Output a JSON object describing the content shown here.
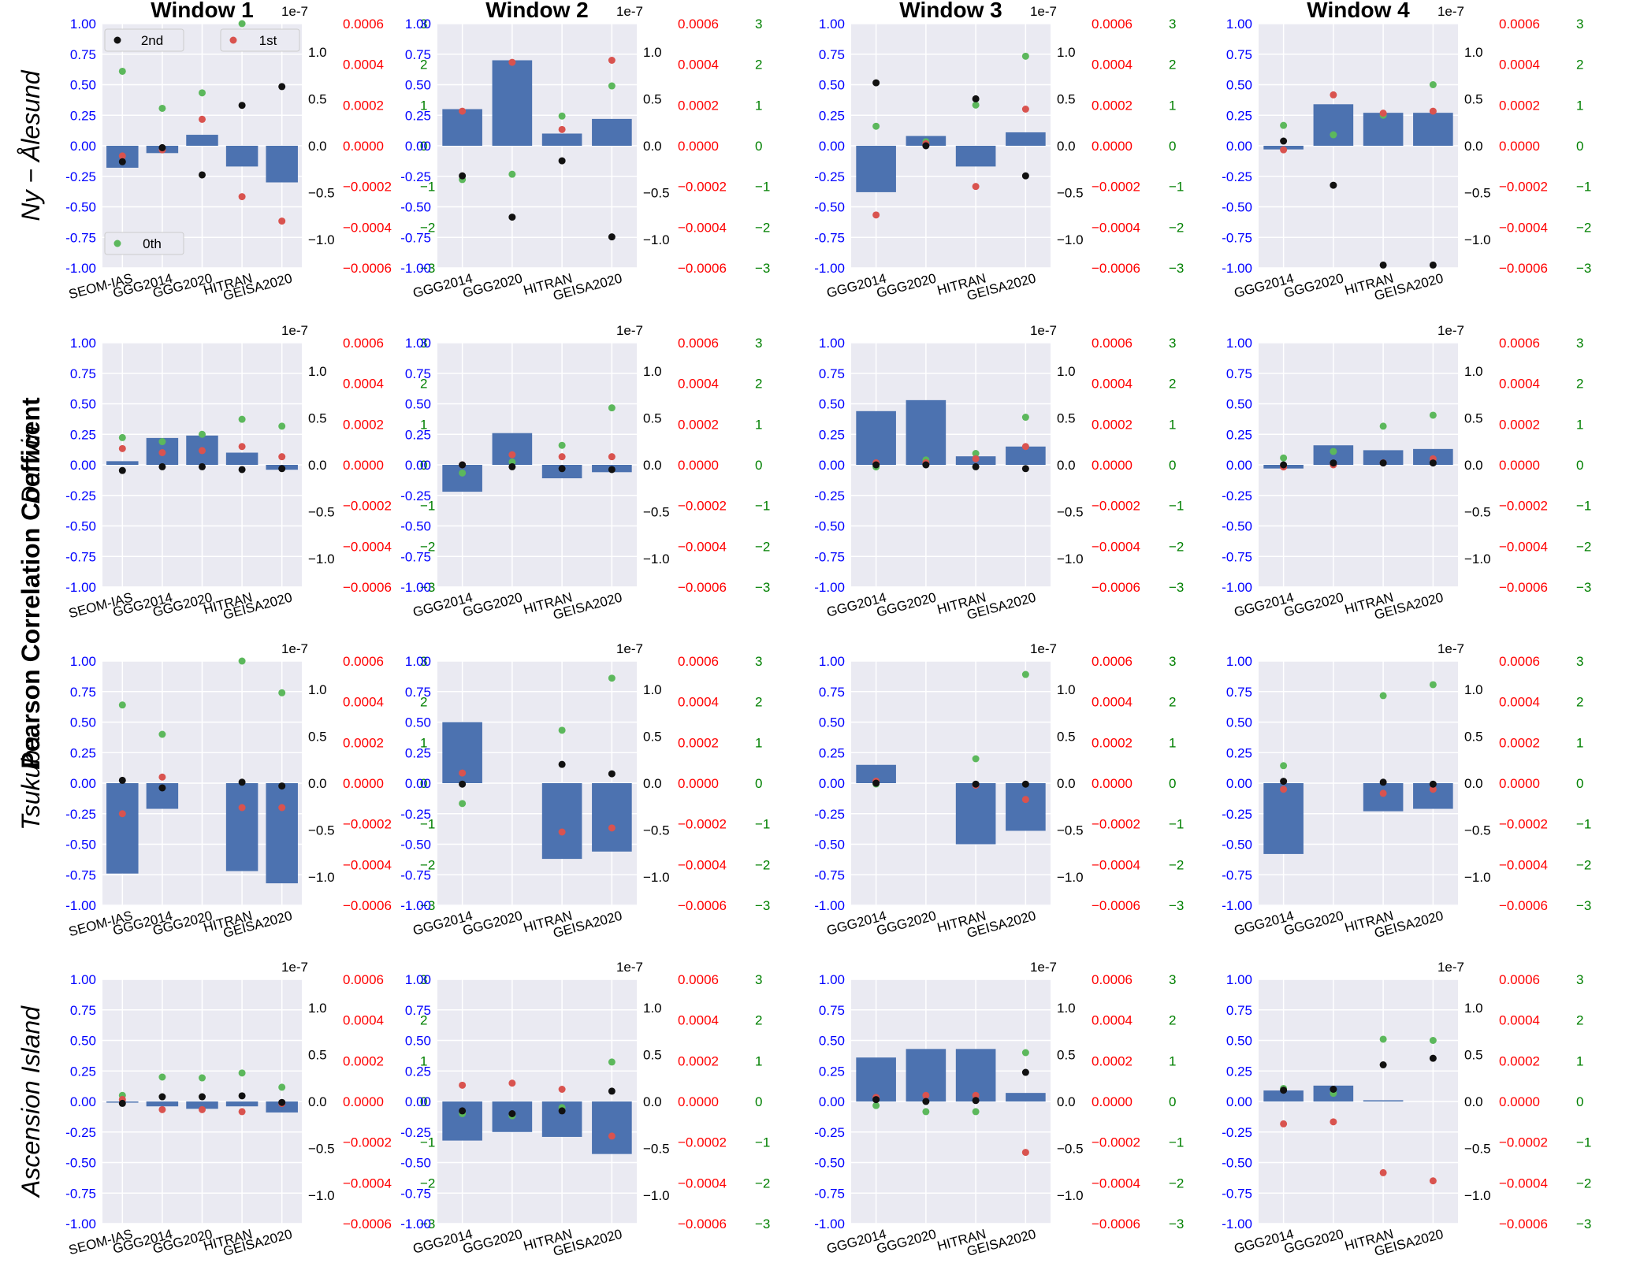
{
  "figure": {
    "ylabel": "Pearson Correlation Coefficent",
    "windows": [
      "Window 1",
      "Window 2",
      "Window 3",
      "Window 4"
    ],
    "sites": [
      "Ny − Ålesund",
      "Darwin",
      "Tsukuba",
      "Ascension Island"
    ],
    "exponent_label": "1e-7",
    "colors": {
      "bar": "#4c72b0",
      "second": "#111111",
      "first": "#d9534f",
      "zeroth": "#5cb85c",
      "left_axis": "#0000ff",
      "red_axis": "#ff0000",
      "green_axis": "#008000",
      "panel_bg": "#eaeaf2"
    },
    "legend": {
      "second": "2nd",
      "first": "1st",
      "zeroth": "0th"
    },
    "axes": {
      "left_ticks": [
        "-1.00",
        "-0.75",
        "-0.50",
        "-0.25",
        "0.00",
        "0.25",
        "0.50",
        "0.75",
        "1.00"
      ],
      "black_ticks": [
        "−1.0",
        "−0.5",
        "0.0",
        "0.5",
        "1.0"
      ],
      "red_ticks": [
        "−0.0006",
        "−0.0004",
        "−0.0002",
        "0.0000",
        "0.0002",
        "0.0004",
        "0.0006"
      ],
      "green_ticks": [
        "−3",
        "−2",
        "−1",
        "0",
        "1",
        "2",
        "3"
      ],
      "left_ylim": [
        -1,
        1
      ],
      "black_ylim": [
        -1.3e-07,
        1.3e-07
      ],
      "red_ylim": [
        -0.0006,
        0.0006
      ],
      "green_ylim": [
        -3,
        3
      ]
    }
  },
  "chart_data": [
    {
      "type": "bar",
      "window": "Window 1",
      "site": "Ny − Ålesund",
      "categories": [
        "SEOM-IAS",
        "GGG2014",
        "GGG2020",
        "HITRAN",
        "GEISA2020"
      ],
      "bar_values": [
        -0.18,
        -0.06,
        0.09,
        -0.17,
        -0.3
      ],
      "second_order": [
        -1.7e-08,
        -2e-09,
        -3.1e-08,
        4.3e-08,
        6.3e-08
      ],
      "first_order": [
        -5e-05,
        -2e-05,
        0.00013,
        -0.00025,
        -0.00037
      ],
      "zeroth_order": [
        1.83,
        0.92,
        1.3,
        3.12,
        2.5
      ]
    },
    {
      "type": "bar",
      "window": "Window 2",
      "site": "Ny − Ålesund",
      "categories": [
        "GGG2014",
        "GGG2020",
        "HITRAN",
        "GEISA2020"
      ],
      "bar_values": [
        0.3,
        0.7,
        0.1,
        0.22
      ],
      "second_order": [
        -3.2e-08,
        -7.6e-08,
        -1.6e-08,
        -9.7e-08
      ],
      "first_order": [
        0.00017,
        0.00041,
        8e-05,
        0.00042
      ],
      "zeroth_order": [
        -0.83,
        -0.7,
        0.73,
        1.47
      ]
    },
    {
      "type": "bar",
      "window": "Window 3",
      "site": "Ny − Ålesund",
      "categories": [
        "GGG2014",
        "GGG2020",
        "HITRAN",
        "GEISA2020"
      ],
      "bar_values": [
        -0.38,
        0.08,
        -0.17,
        0.11
      ],
      "second_order": [
        6.7e-08,
        0,
        5e-08,
        -3.2e-08
      ],
      "first_order": [
        -0.00034,
        1e-05,
        -0.0002,
        0.00018
      ],
      "zeroth_order": [
        0.48,
        0.1,
        1,
        2.2
      ]
    },
    {
      "type": "bar",
      "window": "Window 4",
      "site": "Ny − Ålesund",
      "categories": [
        "GGG2014",
        "GGG2020",
        "HITRAN",
        "GEISA2020"
      ],
      "bar_values": [
        -0.03,
        0.34,
        0.27,
        0.27
      ],
      "second_order": [
        5e-09,
        -4.2e-08,
        -1.27e-07,
        -1.27e-07
      ],
      "first_order": [
        -2e-05,
        0.00025,
        0.00016,
        0.00017
      ],
      "zeroth_order": [
        0.5,
        0.27,
        0.75,
        1.5
      ]
    },
    {
      "type": "bar",
      "window": "Window 1",
      "site": "Darwin",
      "categories": [
        "SEOM-IAS",
        "GGG2014",
        "GGG2020",
        "HITRAN",
        "GEISA2020"
      ],
      "bar_values": [
        0.03,
        0.22,
        0.24,
        0.1,
        -0.04
      ],
      "second_order": [
        -6e-09,
        -2e-09,
        -2e-09,
        -5e-09,
        -4e-09
      ],
      "first_order": [
        8e-05,
        6e-05,
        7e-05,
        9e-05,
        4e-05
      ],
      "zeroth_order": [
        0.67,
        0.57,
        0.75,
        1.12,
        0.95
      ]
    },
    {
      "type": "bar",
      "window": "Window 2",
      "site": "Darwin",
      "categories": [
        "GGG2014",
        "GGG2020",
        "HITRAN",
        "GEISA2020"
      ],
      "bar_values": [
        -0.22,
        0.26,
        -0.11,
        -0.06
      ],
      "second_order": [
        0,
        -2e-09,
        -4e-09,
        -5e-09
      ],
      "first_order": [
        0,
        5e-05,
        4e-05,
        4e-05
      ],
      "zeroth_order": [
        -0.2,
        0.07,
        0.48,
        1.4
      ]
    },
    {
      "type": "bar",
      "window": "Window 3",
      "site": "Darwin",
      "categories": [
        "GGG2014",
        "GGG2020",
        "HITRAN",
        "GEISA2020"
      ],
      "bar_values": [
        0.44,
        0.53,
        0.07,
        0.15
      ],
      "second_order": [
        0,
        0,
        -2e-09,
        -4e-09
      ],
      "first_order": [
        1e-05,
        1e-05,
        3e-05,
        9e-05
      ],
      "zeroth_order": [
        -0.05,
        0.12,
        0.28,
        1.17
      ]
    },
    {
      "type": "bar",
      "window": "Window 4",
      "site": "Darwin",
      "categories": [
        "GGG2014",
        "GGG2020",
        "HITRAN",
        "GEISA2020"
      ],
      "bar_values": [
        -0.03,
        0.16,
        0.12,
        0.13
      ],
      "second_order": [
        0,
        2e-09,
        2e-09,
        2e-09
      ],
      "first_order": [
        -1e-05,
        0,
        1e-05,
        3e-05
      ],
      "zeroth_order": [
        0.17,
        0.33,
        0.95,
        1.22
      ]
    },
    {
      "type": "bar",
      "window": "Window 1",
      "site": "Tsukuba",
      "categories": [
        "SEOM-IAS",
        "GGG2014",
        "GGG2020",
        "HITRAN",
        "GEISA2020"
      ],
      "bar_values": [
        -0.74,
        -0.21,
        null,
        -0.72,
        -0.82
      ],
      "second_order": [
        3e-09,
        -5e-09,
        null,
        1e-09,
        -3e-09
      ],
      "first_order": [
        -0.00015,
        3e-05,
        null,
        -0.00012,
        -0.00012
      ],
      "zeroth_order": [
        1.92,
        1.2,
        null,
        3.08,
        2.22
      ]
    },
    {
      "type": "bar",
      "window": "Window 2",
      "site": "Tsukuba",
      "categories": [
        "GGG2014",
        "GGG2020",
        "HITRAN",
        "GEISA2020"
      ],
      "bar_values": [
        0.5,
        null,
        -0.62,
        -0.56
      ],
      "second_order": [
        -1e-09,
        null,
        2e-08,
        1e-08
      ],
      "first_order": [
        5e-05,
        null,
        -0.00024,
        -0.00022
      ],
      "zeroth_order": [
        -0.5,
        null,
        1.3,
        2.58
      ]
    },
    {
      "type": "bar",
      "window": "Window 3",
      "site": "Tsukuba",
      "categories": [
        "GGG2014",
        "GGG2020",
        "HITRAN",
        "GEISA2020"
      ],
      "bar_values": [
        0.15,
        null,
        -0.5,
        -0.39
      ],
      "second_order": [
        0,
        null,
        -1e-09,
        -1e-09
      ],
      "first_order": [
        1e-05,
        null,
        -1e-05,
        -8e-05
      ],
      "zeroth_order": [
        -0.02,
        null,
        0.6,
        2.67
      ]
    },
    {
      "type": "bar",
      "window": "Window 4",
      "site": "Tsukuba",
      "categories": [
        "GGG2014",
        "GGG2020",
        "HITRAN",
        "GEISA2020"
      ],
      "bar_values": [
        -0.58,
        null,
        -0.23,
        -0.21
      ],
      "second_order": [
        2e-09,
        null,
        1e-09,
        -1e-09
      ],
      "first_order": [
        -3e-05,
        null,
        -5e-05,
        -3e-05
      ],
      "zeroth_order": [
        0.43,
        null,
        2.15,
        2.42
      ]
    },
    {
      "type": "bar",
      "window": "Window 1",
      "site": "Ascension Island",
      "categories": [
        "SEOM-IAS",
        "GGG2014",
        "GGG2020",
        "HITRAN",
        "GEISA2020"
      ],
      "bar_values": [
        0,
        -0.04,
        -0.06,
        -0.04,
        -0.09
      ],
      "second_order": [
        -2e-09,
        5e-09,
        5e-09,
        6e-09,
        -1e-09
      ],
      "first_order": [
        1e-05,
        -4e-05,
        -4e-05,
        -5e-05,
        -1e-05
      ],
      "zeroth_order": [
        0.15,
        0.6,
        0.58,
        0.7,
        0.35
      ]
    },
    {
      "type": "bar",
      "window": "Window 2",
      "site": "Ascension Island",
      "categories": [
        "GGG2014",
        "GGG2020",
        "HITRAN",
        "GEISA2020"
      ],
      "bar_values": [
        -0.32,
        -0.25,
        -0.29,
        -0.43
      ],
      "second_order": [
        -1e-08,
        -1.3e-08,
        -1e-08,
        1.1e-08
      ],
      "first_order": [
        8e-05,
        9e-05,
        6e-05,
        -0.00017
      ],
      "zeroth_order": [
        -0.3,
        -0.35,
        -0.15,
        0.97
      ]
    },
    {
      "type": "bar",
      "window": "Window 3",
      "site": "Ascension Island",
      "categories": [
        "GGG2014",
        "GGG2020",
        "HITRAN",
        "GEISA2020"
      ],
      "bar_values": [
        0.36,
        0.43,
        0.43,
        0.07
      ],
      "second_order": [
        2e-09,
        0,
        1e-09,
        3.1e-08
      ],
      "first_order": [
        2e-05,
        3e-05,
        3e-05,
        -0.00025
      ],
      "zeroth_order": [
        -0.1,
        -0.25,
        -0.25,
        1.2
      ]
    },
    {
      "type": "bar",
      "window": "Window 4",
      "site": "Ascension Island",
      "categories": [
        "GGG2014",
        "GGG2020",
        "HITRAN",
        "GEISA2020"
      ],
      "bar_values": [
        0.09,
        0.13,
        0.01,
        null
      ],
      "second_order": [
        1.2e-08,
        1.3e-08,
        3.9e-08,
        4.6e-08
      ],
      "first_order": [
        -0.00011,
        -0.0001,
        -0.00035,
        -0.00039
      ],
      "zeroth_order": [
        0.32,
        0.2,
        1.53,
        1.5
      ]
    }
  ]
}
